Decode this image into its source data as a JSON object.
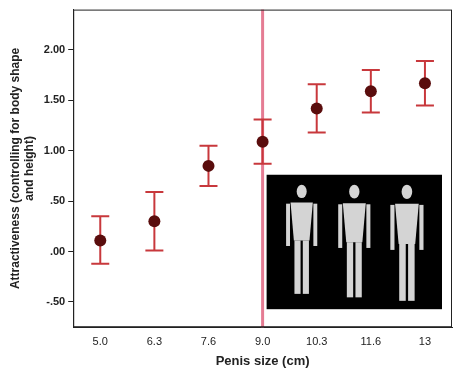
{
  "chart_data": {
    "type": "scatter",
    "x_label": "Penis size (cm)",
    "y_label": [
      "Attractiveness (controlling for body shape",
      "and height)"
    ],
    "categories": [
      "5.0",
      "6.3",
      "7.6",
      "9.0",
      "10.3",
      "11.6",
      "13"
    ],
    "values": [
      0.11,
      0.3,
      0.85,
      1.09,
      1.42,
      1.59,
      1.67
    ],
    "color": "#5a0d0d",
    "marker": "circle",
    "errors": {
      "low": [
        -0.12,
        0.01,
        0.65,
        0.87,
        1.18,
        1.38,
        1.45
      ],
      "high": [
        0.35,
        0.59,
        1.05,
        1.31,
        1.66,
        1.8,
        1.89
      ],
      "color": "#c8383c"
    },
    "reference_line": {
      "x": "9.0",
      "color": "#e57c93"
    },
    "ylim": [
      -0.75,
      2.4
    ],
    "yticks": [
      {
        "value": -0.5,
        "label": "-.50"
      },
      {
        "value": 0,
        "label": ".00"
      },
      {
        "value": 0.5,
        "label": ".50"
      },
      {
        "value": 1,
        "label": "1.00"
      },
      {
        "value": 1.5,
        "label": "1.50"
      },
      {
        "value": 2,
        "label": "2.00"
      }
    ],
    "grid": false
  }
}
